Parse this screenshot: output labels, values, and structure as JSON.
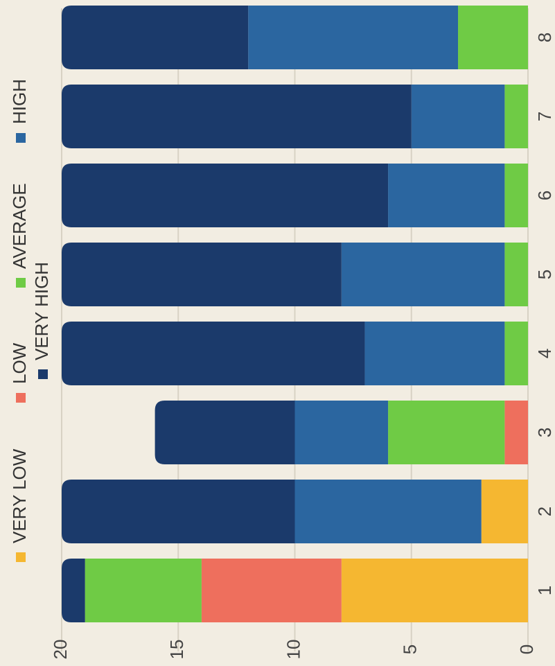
{
  "chart_data": {
    "type": "bar",
    "stacked": true,
    "orientation": "horizontal",
    "categories": [
      "1",
      "2",
      "3",
      "4",
      "5",
      "6",
      "7",
      "8"
    ],
    "series": [
      {
        "name": "VERY LOW",
        "color": "#f5b731",
        "values": [
          8,
          2,
          0,
          0,
          0,
          0,
          0,
          0
        ]
      },
      {
        "name": "LOW",
        "color": "#ee6f5d",
        "values": [
          6,
          0,
          1,
          0,
          0,
          0,
          0,
          0
        ]
      },
      {
        "name": "AVERAGE",
        "color": "#6fcb45",
        "values": [
          5,
          0,
          5,
          1,
          1,
          1,
          1,
          3
        ]
      },
      {
        "name": "HIGH",
        "color": "#2b66a0",
        "values": [
          0,
          8,
          4,
          6,
          7,
          5,
          4,
          9
        ]
      },
      {
        "name": "VERY HIGH",
        "color": "#1b3a6b",
        "values": [
          1,
          10,
          6,
          13,
          12,
          14,
          15,
          8
        ]
      }
    ],
    "value_axis": {
      "min": 0,
      "max": 20,
      "ticks": [
        0,
        5,
        10,
        15,
        20
      ]
    },
    "grid": true,
    "legend_position": "top",
    "rotated_90": true
  }
}
